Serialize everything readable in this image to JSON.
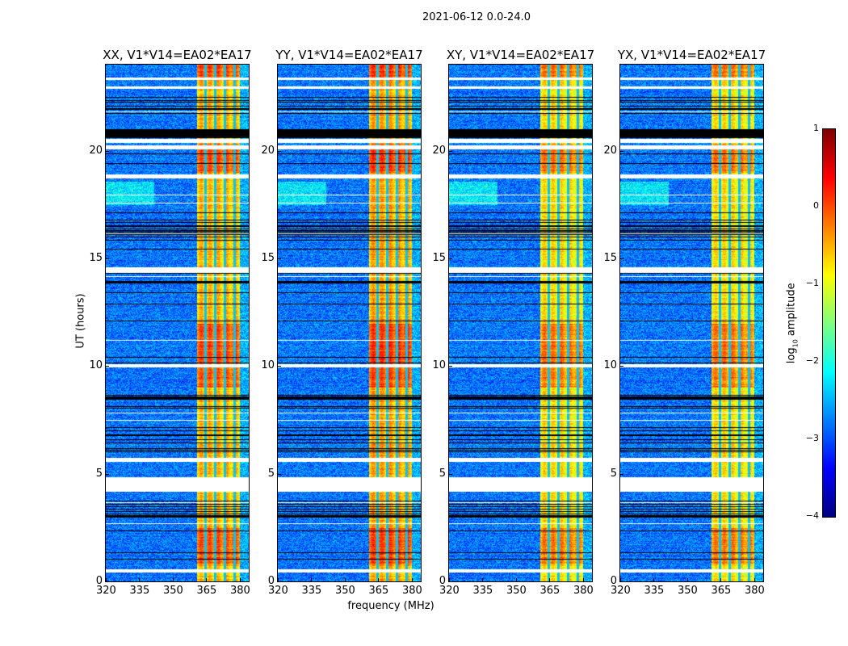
{
  "title": "2021-06-12 0.0-24.0",
  "chart_data": {
    "type": "heatmap",
    "title": "2021-06-12 0.0-24.0",
    "xlabel": "frequency (MHz)",
    "ylabel": "UT (hours)",
    "xlim": [
      320,
      384
    ],
    "ylim": [
      0,
      24
    ],
    "xticks": [
      "320",
      "335",
      "350",
      "365",
      "380"
    ],
    "xtick_values": [
      320,
      335,
      350,
      365,
      380
    ],
    "yticks": [
      "0",
      "5",
      "10",
      "15",
      "20"
    ],
    "ytick_values": [
      0,
      5,
      10,
      15,
      20
    ],
    "panels": [
      {
        "title": "XX, V1*V14=EA02*EA17",
        "band_level": -0.6
      },
      {
        "title": "YY, V1*V14=EA02*EA17",
        "band_level": -0.5
      },
      {
        "title": "XY, V1*V14=EA02*EA17",
        "band_level": -0.8
      },
      {
        "title": "YX, V1*V14=EA02*EA17",
        "band_level": -0.8
      }
    ],
    "background_level": -2.8,
    "bright_band_mhz": [
      360.5,
      380
    ],
    "dark_channels_mhz": [
      364.5,
      368.8,
      373.2,
      377.5
    ],
    "flagged_white_hours": [
      [
        0.45,
        0.6
      ],
      [
        4.2,
        4.85
      ],
      [
        5.55,
        5.75
      ],
      [
        9.95,
        10.1
      ],
      [
        14.35,
        14.6
      ],
      [
        18.75,
        18.9
      ],
      [
        20.1,
        20.25
      ],
      [
        20.4,
        20.55
      ],
      [
        22.9,
        23.0
      ],
      [
        23.3,
        23.4
      ]
    ],
    "flagged_black_hours": [
      [
        20.6,
        21.0
      ]
    ],
    "colorbar": {
      "label": "log",
      "label_sub": "10",
      "label_rest": " amplitude",
      "range": [
        -4,
        1
      ],
      "ticks": [
        "1",
        "0",
        "−1",
        "−2",
        "−3",
        "−4"
      ],
      "tick_values": [
        1,
        0,
        -1,
        -2,
        -3,
        -4
      ],
      "colormap": "jet"
    }
  }
}
